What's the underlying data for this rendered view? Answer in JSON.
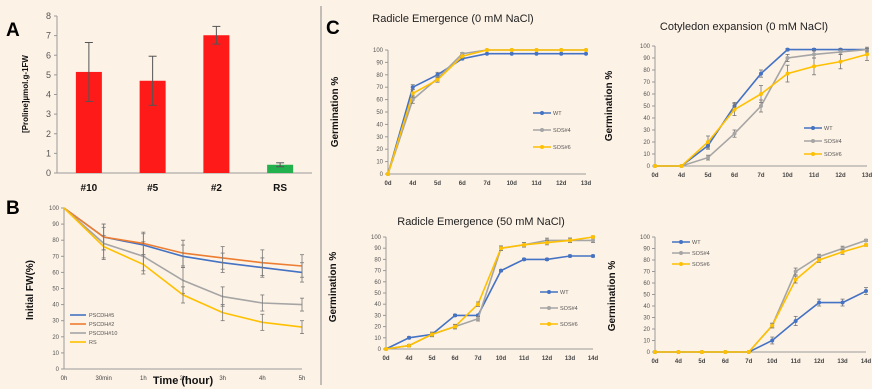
{
  "panels": {
    "A": "A",
    "B": "B",
    "C": "C"
  },
  "colors": {
    "background": "#fdf2e6",
    "red_bar": "#ff1a1a",
    "green_bar": "#22b14c",
    "blue": "#4472c4",
    "orange": "#ed7d31",
    "gray": "#a5a5a5",
    "yellow": "#ffc000"
  },
  "chart_data": [
    {
      "id": "A",
      "type": "bar",
      "ylabel": "[Proline]µmol.g-1FW",
      "categories": [
        "#10",
        "#5",
        "#2",
        "RS"
      ],
      "values": [
        5.15,
        4.7,
        7.02,
        0.42
      ],
      "errors": [
        1.5,
        1.25,
        0.45,
        0.1
      ],
      "bar_colors": [
        "#ff1a1a",
        "#ff1a1a",
        "#ff1a1a",
        "#22b14c"
      ],
      "ylim": [
        0,
        8
      ],
      "yticks": [
        0,
        1,
        2,
        3,
        4,
        5,
        6,
        7,
        8
      ]
    },
    {
      "id": "B",
      "type": "line",
      "xlabel": "Time (hour)",
      "ylabel": "Initial FW(%)",
      "x": [
        "0h",
        "30min",
        "1h",
        "2h",
        "3h",
        "4h",
        "5h"
      ],
      "ylim": [
        0,
        100
      ],
      "yticks": [
        0,
        10,
        20,
        30,
        40,
        50,
        60,
        70,
        80,
        90,
        100
      ],
      "legend_position": "bottom-left",
      "series": [
        {
          "name": "PSCDH#5",
          "color": "#4472c4",
          "values": [
            100,
            82,
            77,
            70,
            66,
            63,
            60
          ],
          "errors": [
            0,
            8,
            7,
            7,
            6,
            6,
            6
          ]
        },
        {
          "name": "PSCDH#2",
          "color": "#ed7d31",
          "values": [
            100,
            82,
            78,
            72,
            69,
            66,
            64
          ],
          "errors": [
            0,
            8,
            7,
            8,
            7,
            8,
            7
          ]
        },
        {
          "name": "PSCDH#10",
          "color": "#a5a5a5",
          "values": [
            100,
            78,
            70,
            55,
            45,
            41,
            40
          ],
          "errors": [
            0,
            10,
            9,
            8,
            6,
            5,
            4
          ]
        },
        {
          "name": "RS",
          "color": "#ffc000",
          "values": [
            100,
            76,
            65,
            46,
            35,
            29,
            26
          ],
          "errors": [
            0,
            7,
            6,
            5,
            5,
            5,
            4
          ]
        }
      ]
    },
    {
      "id": "C1",
      "type": "line",
      "title": "Radicle Emergence  (0 mM NaCl)",
      "ylabel": "Germination %",
      "x": [
        "0d",
        "4d",
        "5d",
        "6d",
        "7d",
        "10d",
        "11d",
        "12d",
        "13d"
      ],
      "ylim": [
        0,
        100
      ],
      "yticks": [
        0,
        10,
        20,
        30,
        40,
        50,
        60,
        70,
        80,
        90,
        100
      ],
      "legend_position": "right",
      "series": [
        {
          "name": "WT",
          "color": "#4472c4",
          "values": [
            0,
            70,
            80,
            93,
            97,
            97,
            97,
            97,
            97
          ],
          "errors": [
            0,
            2,
            2,
            1,
            0,
            0,
            0,
            0,
            0
          ]
        },
        {
          "name": "SOS#4",
          "color": "#a5a5a5",
          "values": [
            0,
            60,
            77,
            97,
            100,
            100,
            100,
            100,
            100
          ],
          "errors": [
            0,
            3,
            2,
            1,
            0,
            0,
            0,
            0,
            0
          ]
        },
        {
          "name": "SOS#6",
          "color": "#ffc000",
          "values": [
            0,
            65,
            76,
            95,
            100,
            100,
            100,
            100,
            100
          ],
          "errors": [
            0,
            3,
            2,
            1,
            0,
            0,
            0,
            0,
            0
          ]
        }
      ]
    },
    {
      "id": "C2",
      "type": "line",
      "title": "Cotyledon expansion (0 mM NaCl)",
      "ylabel": "Germination %",
      "x": [
        "0d",
        "4d",
        "5d",
        "6d",
        "7d",
        "10d",
        "11d",
        "12d",
        "13d"
      ],
      "ylim": [
        0,
        100
      ],
      "yticks": [
        0,
        10,
        20,
        30,
        40,
        50,
        60,
        70,
        80,
        90,
        100
      ],
      "legend_position": "right",
      "series": [
        {
          "name": "WT",
          "color": "#4472c4",
          "values": [
            0,
            0,
            17,
            50,
            77,
            97,
            97,
            97,
            97
          ],
          "errors": [
            0,
            0,
            3,
            3,
            3,
            1,
            1,
            1,
            1
          ]
        },
        {
          "name": "SOS#4",
          "color": "#a5a5a5",
          "values": [
            0,
            0,
            7,
            27,
            50,
            90,
            93,
            95,
            97
          ],
          "errors": [
            0,
            0,
            2,
            3,
            5,
            3,
            3,
            2,
            2
          ]
        },
        {
          "name": "SOS#6",
          "color": "#ffc000",
          "values": [
            0,
            0,
            20,
            47,
            60,
            77,
            83,
            87,
            93
          ],
          "errors": [
            0,
            0,
            5,
            5,
            7,
            7,
            7,
            6,
            5
          ]
        }
      ]
    },
    {
      "id": "C3",
      "type": "line",
      "title": "Radicle Emergence (50 mM NaCl)",
      "ylabel": "Germination %",
      "x": [
        "0d",
        "4d",
        "5d",
        "6d",
        "7d",
        "10d",
        "11d",
        "12d",
        "13d",
        "14d"
      ],
      "ylim": [
        0,
        100
      ],
      "yticks": [
        0,
        10,
        20,
        30,
        40,
        50,
        60,
        70,
        80,
        90,
        100
      ],
      "legend_position": "right",
      "series": [
        {
          "name": "WT",
          "color": "#4472c4",
          "values": [
            0,
            10,
            13,
            30,
            30,
            70,
            80,
            80,
            83,
            83
          ],
          "errors": [
            0,
            1,
            1,
            1,
            1,
            1,
            1,
            1,
            1,
            1
          ]
        },
        {
          "name": "SOS#4",
          "color": "#a5a5a5",
          "values": [
            0,
            3,
            13,
            20,
            27,
            90,
            93,
            97,
            97,
            97
          ],
          "errors": [
            0,
            1,
            2,
            2,
            2,
            2,
            2,
            2,
            2,
            2
          ]
        },
        {
          "name": "SOS#6",
          "color": "#ffc000",
          "values": [
            0,
            3,
            13,
            20,
            40,
            90,
            93,
            95,
            97,
            100
          ],
          "errors": [
            0,
            1,
            2,
            2,
            2,
            2,
            2,
            2,
            2,
            1
          ]
        }
      ]
    },
    {
      "id": "C4",
      "type": "line",
      "ylabel": "Germination %",
      "x": [
        "0d",
        "4d",
        "5d",
        "6d",
        "7d",
        "10d",
        "11d",
        "12d",
        "13d",
        "14d"
      ],
      "ylim": [
        0,
        100
      ],
      "yticks": [
        0,
        10,
        20,
        30,
        40,
        50,
        60,
        70,
        80,
        90,
        100
      ],
      "legend_position": "top-left",
      "series": [
        {
          "name": "WT",
          "color": "#4472c4",
          "values": [
            0,
            0,
            0,
            0,
            0,
            10,
            27,
            43,
            43,
            53
          ],
          "errors": [
            0,
            0,
            0,
            0,
            0,
            3,
            4,
            3,
            3,
            3
          ]
        },
        {
          "name": "SOS#4",
          "color": "#a5a5a5",
          "values": [
            0,
            0,
            0,
            0,
            0,
            23,
            70,
            83,
            90,
            97
          ],
          "errors": [
            0,
            0,
            0,
            0,
            0,
            2,
            3,
            2,
            2,
            1
          ]
        },
        {
          "name": "SOS#6",
          "color": "#ffc000",
          "values": [
            0,
            0,
            0,
            0,
            0,
            23,
            63,
            80,
            87,
            93
          ],
          "errors": [
            0,
            0,
            0,
            0,
            0,
            2,
            3,
            2,
            2,
            1
          ]
        }
      ]
    }
  ]
}
